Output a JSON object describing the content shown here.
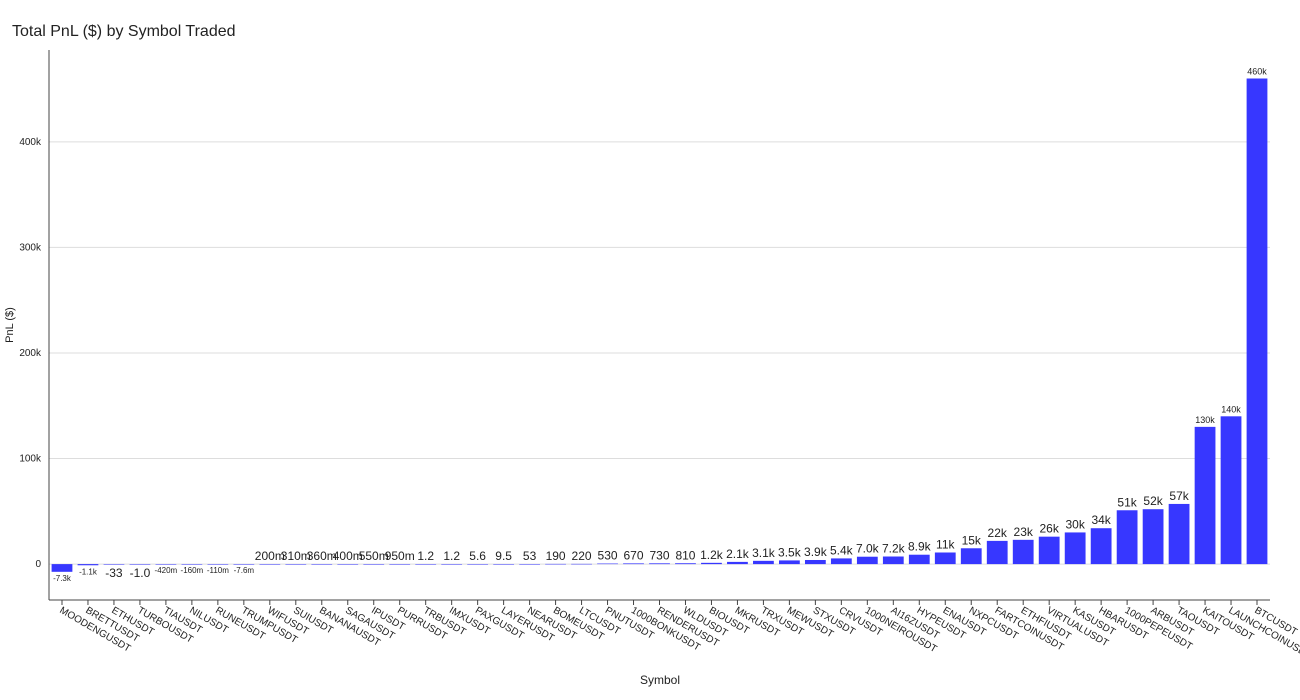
{
  "chart_data": {
    "type": "bar",
    "title": "Total PnL ($) by Symbol Traded",
    "x_label": "Symbol",
    "y_label": "PnL ($)",
    "categories": [
      "MOODENGUSDT",
      "BRETTUSDT",
      "ETHUSDT",
      "TURBOUSDT",
      "TIAUSDT",
      "NILUSDT",
      "RUNEUSDT",
      "TRUMPUSDT",
      "WIFUSDT",
      "SUIUSDT",
      "BANANAUSDT",
      "SAGAUSDT",
      "IPUSDT",
      "PURRUSDT",
      "TRBUSDT",
      "IMXUSDT",
      "PAXGUSDT",
      "LAYERUSDT",
      "NEARUSDT",
      "BOMEUSDT",
      "LTCUSDT",
      "PNUTUSDT",
      "1000BONKUSDT",
      "RENDERUSDT",
      "WLDUSDT",
      "BIOUSDT",
      "MKRUSDT",
      "TRXUSDT",
      "MEWUSDT",
      "STXUSDT",
      "CRVUSDT",
      "1000NEIROUSDT",
      "AI16ZUSDT",
      "HYPEUSDT",
      "ENAUSDT",
      "NXPCUSDT",
      "FARTCOINUSDT",
      "ETHFIUSDT",
      "VIRTUALUSDT",
      "KASUSDT",
      "HBARUSDT",
      "1000PEPEUSDT",
      "ARBUSDT",
      "TAOUSDT",
      "KAITOUSDT",
      "LAUNCHCOINUSDT",
      "BTCUSDT"
    ],
    "values": [
      -7300,
      -1100,
      -33,
      -1.0,
      -0.42,
      -0.16,
      -0.11,
      -0.0076,
      0.2,
      0.31,
      0.36,
      0.4,
      0.55,
      0.95,
      1.2,
      1.2,
      5.6,
      9.5,
      53,
      190,
      220,
      530,
      670,
      730,
      810,
      1200,
      2100,
      3100,
      3500,
      3900,
      5400,
      7000,
      7200,
      8900,
      11000,
      15000,
      22000,
      23000,
      26000,
      30000,
      34000,
      51000,
      52000,
      57000,
      130000,
      140000,
      460000
    ],
    "value_labels": [
      "-7.3k",
      "-1.1k",
      "-33",
      "-1.0",
      "-420m",
      "-160m",
      "-110m",
      "-7.6m",
      "200m",
      "310m",
      "360m",
      "400m",
      "550m",
      "950m",
      "1.2",
      "1.2",
      "5.6",
      "9.5",
      "53",
      "190",
      "220",
      "530",
      "670",
      "730",
      "810",
      "1.2k",
      "2.1k",
      "3.1k",
      "3.5k",
      "3.9k",
      "5.4k",
      "7.0k",
      "7.2k",
      "8.9k",
      "11k",
      "15k",
      "22k",
      "23k",
      "26k",
      "30k",
      "34k",
      "51k",
      "52k",
      "57k",
      "130k",
      "140k",
      "460k"
    ],
    "color": "#3333ff",
    "ylim": [
      -34000,
      487000
    ],
    "yticks": [
      0,
      {
        "value": 100000,
        "label": "100k"
      },
      {
        "value": 200000,
        "label": "200k"
      },
      {
        "value": 300000,
        "label": "300k"
      },
      {
        "value": 400000,
        "label": "400k"
      }
    ],
    "grid": true
  }
}
